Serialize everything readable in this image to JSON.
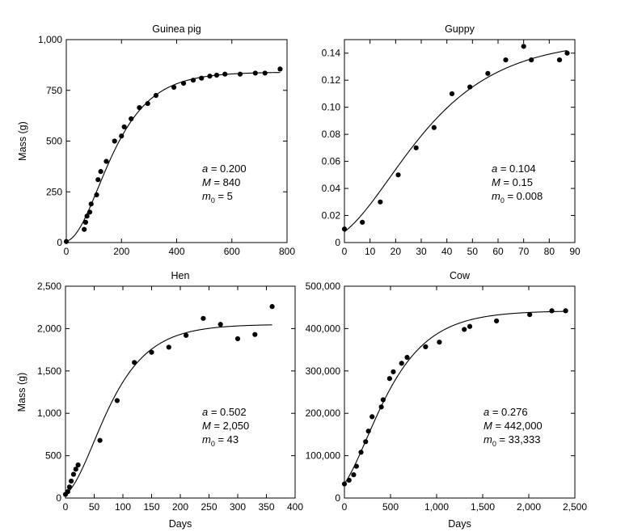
{
  "chart_data": [
    {
      "id": "guinea",
      "type": "scatter",
      "title": "Guinea pig",
      "xlabel": "",
      "ylabel": "Mass (g)",
      "xlim": [
        0,
        800
      ],
      "ylim": [
        0,
        1000
      ],
      "xticks": [
        0,
        200,
        400,
        600,
        800
      ],
      "xtick_labels": [
        "0",
        "200",
        "400",
        "600",
        "800"
      ],
      "yticks": [
        0,
        250,
        500,
        750,
        1000
      ],
      "ytick_labels": [
        "0",
        "250",
        "500",
        "750",
        "1,000"
      ],
      "params": {
        "a": 0.2,
        "M": 840,
        "m0": 5
      },
      "param_text": [
        {
          "sym": "a",
          "sub": "",
          "val": " = 0.200"
        },
        {
          "sym": "M",
          "sub": "",
          "val": " = 840"
        },
        {
          "sym": "m",
          "sub": "0",
          "val": " = 5"
        }
      ],
      "points": [
        [
          0,
          5
        ],
        [
          65,
          65
        ],
        [
          70,
          100
        ],
        [
          75,
          130
        ],
        [
          85,
          150
        ],
        [
          90,
          190
        ],
        [
          110,
          235
        ],
        [
          115,
          310
        ],
        [
          125,
          350
        ],
        [
          145,
          400
        ],
        [
          175,
          500
        ],
        [
          200,
          525
        ],
        [
          210,
          570
        ],
        [
          235,
          610
        ],
        [
          265,
          665
        ],
        [
          295,
          685
        ],
        [
          325,
          725
        ],
        [
          390,
          765
        ],
        [
          425,
          785
        ],
        [
          460,
          800
        ],
        [
          490,
          810
        ],
        [
          520,
          820
        ],
        [
          545,
          825
        ],
        [
          575,
          830
        ],
        [
          630,
          830
        ],
        [
          685,
          835
        ],
        [
          720,
          835
        ],
        [
          775,
          855
        ]
      ]
    },
    {
      "id": "guppy",
      "type": "scatter",
      "title": "Guppy",
      "xlabel": "",
      "ylabel": "",
      "xlim": [
        0,
        90
      ],
      "ylim": [
        0,
        0.15
      ],
      "xticks": [
        0,
        10,
        20,
        30,
        40,
        50,
        60,
        70,
        80,
        90
      ],
      "xtick_labels": [
        "0",
        "10",
        "20",
        "30",
        "40",
        "50",
        "60",
        "70",
        "80",
        "90"
      ],
      "yticks": [
        0,
        0.02,
        0.04,
        0.06,
        0.08,
        0.1,
        0.12,
        0.14
      ],
      "ytick_labels": [
        "0",
        "0.02",
        "0.04",
        "0.06",
        "0.08",
        "0.10",
        "0.12",
        "0.14"
      ],
      "params": {
        "a": 0.104,
        "M": 0.15,
        "m0": 0.008
      },
      "param_text": [
        {
          "sym": "a",
          "sub": "",
          "val": " = 0.104"
        },
        {
          "sym": "M",
          "sub": "",
          "val": " = 0.15"
        },
        {
          "sym": "m",
          "sub": "0",
          "val": " = 0.008"
        }
      ],
      "points": [
        [
          0,
          0.01
        ],
        [
          7,
          0.015
        ],
        [
          14,
          0.03
        ],
        [
          21,
          0.05
        ],
        [
          28,
          0.07
        ],
        [
          35,
          0.085
        ],
        [
          42,
          0.11
        ],
        [
          49,
          0.115
        ],
        [
          56,
          0.125
        ],
        [
          63,
          0.135
        ],
        [
          70,
          0.145
        ],
        [
          73,
          0.135
        ],
        [
          84,
          0.135
        ],
        [
          87,
          0.14
        ]
      ]
    },
    {
      "id": "hen",
      "type": "scatter",
      "title": "Hen",
      "xlabel": "Days",
      "ylabel": "Mass (g)",
      "xlim": [
        0,
        400
      ],
      "ylim": [
        0,
        2500
      ],
      "xticks": [
        0,
        50,
        100,
        150,
        200,
        250,
        300,
        350,
        400
      ],
      "xtick_labels": [
        "0",
        "50",
        "100",
        "150",
        "200",
        "250",
        "300",
        "350",
        "400"
      ],
      "yticks": [
        0,
        500,
        1000,
        1500,
        2000,
        2500
      ],
      "ytick_labels": [
        "0",
        "500",
        "1,000",
        "1,500",
        "2,000",
        "2,500"
      ],
      "params": {
        "a": 0.502,
        "M": 2050,
        "m0": 43
      },
      "param_text": [
        {
          "sym": "a",
          "sub": "",
          "val": " = 0.502"
        },
        {
          "sym": "M",
          "sub": "",
          "val": " = 2,050"
        },
        {
          "sym": "m",
          "sub": "0",
          "val": " = 43"
        }
      ],
      "points": [
        [
          0,
          43
        ],
        [
          4,
          75
        ],
        [
          7,
          130
        ],
        [
          10,
          200
        ],
        [
          14,
          280
        ],
        [
          18,
          340
        ],
        [
          22,
          390
        ],
        [
          60,
          680
        ],
        [
          90,
          1150
        ],
        [
          120,
          1600
        ],
        [
          150,
          1720
        ],
        [
          180,
          1780
        ],
        [
          210,
          1920
        ],
        [
          240,
          2120
        ],
        [
          270,
          2050
        ],
        [
          300,
          1880
        ],
        [
          330,
          1930
        ],
        [
          360,
          2260
        ]
      ]
    },
    {
      "id": "cow",
      "type": "scatter",
      "title": "Cow",
      "xlabel": "Days",
      "ylabel": "",
      "xlim": [
        0,
        2500
      ],
      "ylim": [
        0,
        500000
      ],
      "xticks": [
        0,
        500,
        1000,
        1500,
        2000,
        2500
      ],
      "xtick_labels": [
        "0",
        "500",
        "1,000",
        "1,500",
        "2,000",
        "2,500"
      ],
      "yticks": [
        0,
        100000,
        200000,
        300000,
        400000,
        500000
      ],
      "ytick_labels": [
        "0",
        "100,000",
        "200,000",
        "300,000",
        "400,000",
        "500,000"
      ],
      "params": {
        "a": 0.276,
        "M": 442000,
        "m0": 33333
      },
      "param_text": [
        {
          "sym": "a",
          "sub": "",
          "val": " = 0.276"
        },
        {
          "sym": "M",
          "sub": "",
          "val": " = 442,000"
        },
        {
          "sym": "m",
          "sub": "0",
          "val": " = 33,333"
        }
      ],
      "points": [
        [
          0,
          33333
        ],
        [
          50,
          42000
        ],
        [
          100,
          55000
        ],
        [
          130,
          75000
        ],
        [
          180,
          108000
        ],
        [
          230,
          133000
        ],
        [
          260,
          158000
        ],
        [
          300,
          192000
        ],
        [
          400,
          215000
        ],
        [
          420,
          232000
        ],
        [
          490,
          282000
        ],
        [
          530,
          298000
        ],
        [
          620,
          318000
        ],
        [
          680,
          332000
        ],
        [
          880,
          357000
        ],
        [
          1030,
          368000
        ],
        [
          1300,
          398000
        ],
        [
          1360,
          405000
        ],
        [
          1650,
          418000
        ],
        [
          2010,
          433000
        ],
        [
          2250,
          442000
        ],
        [
          2400,
          442000
        ]
      ]
    }
  ]
}
